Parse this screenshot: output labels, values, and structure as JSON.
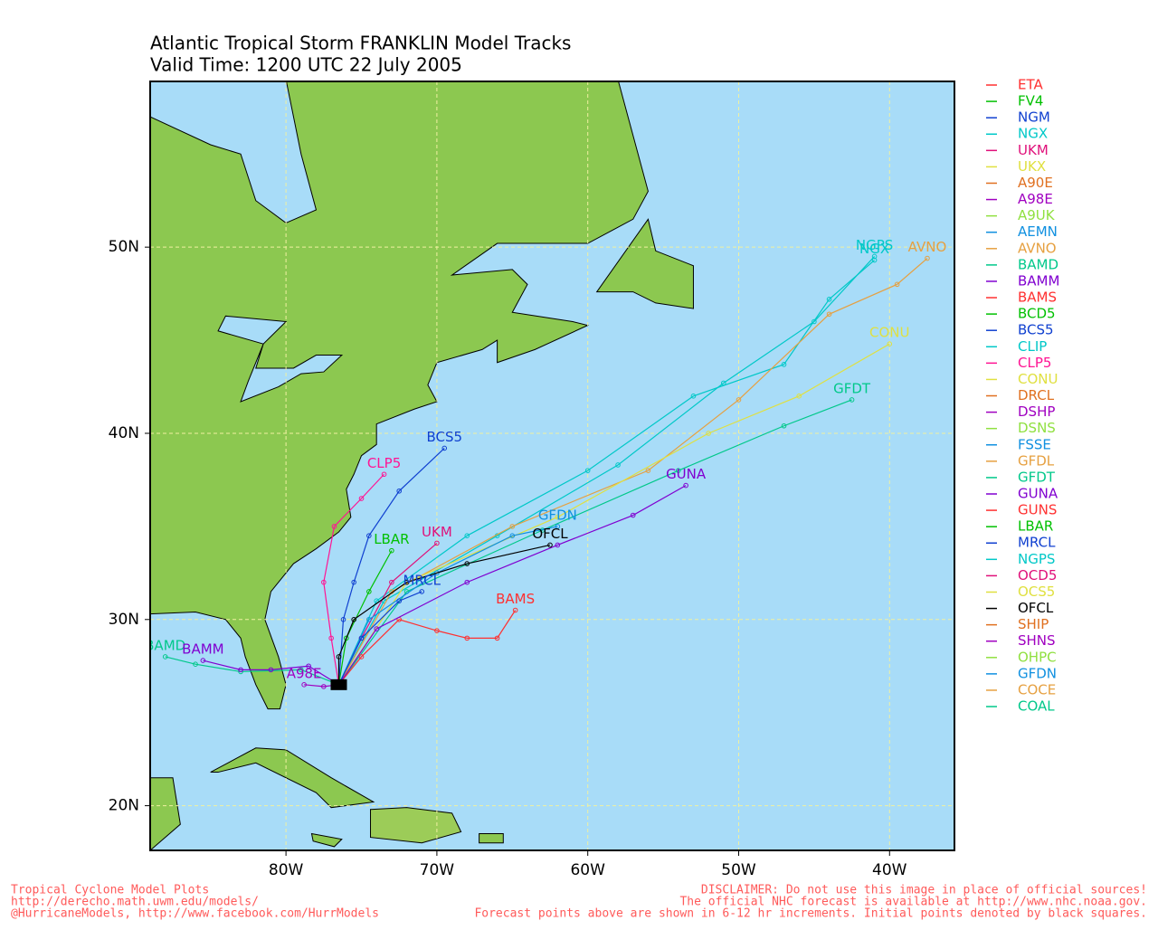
{
  "header": {
    "title": "Atlantic Tropical Storm FRANKLIN Model Tracks",
    "subtitle": "Valid Time: 1200 UTC 22 July 2005"
  },
  "map": {
    "lon_range": [
      -89,
      -35.7
    ],
    "lat_range": [
      17.6,
      58.9
    ],
    "lon_ticks": [
      {
        "value": -80,
        "label": "80W"
      },
      {
        "value": -70,
        "label": "70W"
      },
      {
        "value": -60,
        "label": "60W"
      },
      {
        "value": -50,
        "label": "50W"
      },
      {
        "value": -40,
        "label": "40W"
      }
    ],
    "lat_ticks": [
      {
        "value": 20,
        "label": "20N"
      },
      {
        "value": 30,
        "label": "30N"
      },
      {
        "value": 40,
        "label": "40N"
      },
      {
        "value": 50,
        "label": "50N"
      }
    ],
    "grid": true
  },
  "legend": [
    {
      "name": "ETA",
      "color": "#ff3030"
    },
    {
      "name": "FV4",
      "color": "#00c000"
    },
    {
      "name": "NGM",
      "color": "#1040d0"
    },
    {
      "name": "NGX",
      "color": "#00c8c8"
    },
    {
      "name": "UKM",
      "color": "#e0107a"
    },
    {
      "name": "UKX",
      "color": "#e0e040"
    },
    {
      "name": "A90E",
      "color": "#e07020"
    },
    {
      "name": "A98E",
      "color": "#a000c0"
    },
    {
      "name": "A9UK",
      "color": "#90e040"
    },
    {
      "name": "AEMN",
      "color": "#1090e0"
    },
    {
      "name": "AVNO",
      "color": "#e6a040"
    },
    {
      "name": "BAMD",
      "color": "#00c88a"
    },
    {
      "name": "BAMM",
      "color": "#8000d0"
    },
    {
      "name": "BAMS",
      "color": "#ff3030"
    },
    {
      "name": "BCD5",
      "color": "#00c000"
    },
    {
      "name": "BCS5",
      "color": "#1040d0"
    },
    {
      "name": "CLIP",
      "color": "#00c8c8"
    },
    {
      "name": "CLP5",
      "color": "#ff1493"
    },
    {
      "name": "CONU",
      "color": "#e0e040"
    },
    {
      "name": "DRCL",
      "color": "#e07020"
    },
    {
      "name": "DSHP",
      "color": "#a000c0"
    },
    {
      "name": "DSNS",
      "color": "#90e040"
    },
    {
      "name": "FSSE",
      "color": "#1090e0"
    },
    {
      "name": "GFDL",
      "color": "#e6a040"
    },
    {
      "name": "GFDT",
      "color": "#00c88a"
    },
    {
      "name": "GUNA",
      "color": "#8000d0"
    },
    {
      "name": "GUNS",
      "color": "#ff3030"
    },
    {
      "name": "LBAR",
      "color": "#00c000"
    },
    {
      "name": "MRCL",
      "color": "#1040d0"
    },
    {
      "name": "NGPS",
      "color": "#00c8c8"
    },
    {
      "name": "OCD5",
      "color": "#e0107a"
    },
    {
      "name": "OCS5",
      "color": "#e0e040"
    },
    {
      "name": "OFCL",
      "color": "#000000"
    },
    {
      "name": "SHIP",
      "color": "#e07020"
    },
    {
      "name": "SHNS",
      "color": "#a000c0"
    },
    {
      "name": "OHPC",
      "color": "#90e040"
    },
    {
      "name": "GFDN",
      "color": "#1090e0"
    },
    {
      "name": "COCE",
      "color": "#e6a040"
    },
    {
      "name": "COAL",
      "color": "#00c88a"
    }
  ],
  "tracks": [
    {
      "name": "NGX",
      "color": "#00c8c8",
      "lon": [
        -76.5,
        -74,
        -68,
        -60,
        -53,
        -47,
        -44,
        -41
      ],
      "lat": [
        26.5,
        31,
        34.5,
        38,
        42,
        43.7,
        47.2,
        49.3
      ]
    },
    {
      "name": "NGPS",
      "color": "#00c8c8",
      "lon": [
        -76.5,
        -73.5,
        -66,
        -58,
        -51,
        -45,
        -41
      ],
      "lat": [
        26.5,
        31,
        34.5,
        38.3,
        42.7,
        46,
        49.5
      ]
    },
    {
      "name": "AVNO",
      "color": "#e6a040",
      "lon": [
        -76.5,
        -73,
        -65,
        -56,
        -50,
        -44,
        -39.5,
        -37.5
      ],
      "lat": [
        26.5,
        31.5,
        35,
        38,
        41.8,
        46.4,
        48,
        49.4
      ]
    },
    {
      "name": "CONU",
      "color": "#e0e040",
      "lon": [
        -76.5,
        -72,
        -62,
        -52,
        -46,
        -40
      ],
      "lat": [
        26.5,
        32,
        35.5,
        40,
        42,
        44.8
      ]
    },
    {
      "name": "GFDT",
      "color": "#00c88a",
      "lon": [
        -76.5,
        -72,
        -63,
        -54,
        -47,
        -42.5
      ],
      "lat": [
        26.5,
        31.5,
        34.8,
        38,
        40.4,
        41.8
      ]
    },
    {
      "name": "BCS5",
      "color": "#1040d0",
      "lon": [
        -76.5,
        -76.2,
        -75.5,
        -74.5,
        -72.5,
        -69.5
      ],
      "lat": [
        26.5,
        30,
        32,
        34.5,
        36.9,
        39.2
      ]
    },
    {
      "name": "CLP5",
      "color": "#ff1493",
      "lon": [
        -76.5,
        -77,
        -77.5,
        -76.8,
        -75,
        -73.5
      ],
      "lat": [
        26.5,
        29,
        32,
        35,
        36.5,
        37.8
      ]
    },
    {
      "name": "LBAR",
      "color": "#00c000",
      "lon": [
        -76.5,
        -76,
        -74.5,
        -73
      ],
      "lat": [
        26.5,
        29,
        31.5,
        33.7
      ]
    },
    {
      "name": "UKM",
      "color": "#e0107a",
      "lon": [
        -76.5,
        -75,
        -73,
        -70
      ],
      "lat": [
        26.5,
        29,
        32,
        34.1
      ]
    },
    {
      "name": "BAMS",
      "color": "#ff3030",
      "lon": [
        -76.5,
        -75,
        -72.5,
        -70,
        -68,
        -66,
        -64.8
      ],
      "lat": [
        26.5,
        28,
        30,
        29.4,
        29,
        29,
        30.5
      ]
    },
    {
      "name": "BAMD",
      "color": "#00c88a",
      "lon": [
        -76.5,
        -79,
        -83,
        -86,
        -88
      ],
      "lat": [
        26.5,
        27.3,
        27.2,
        27.6,
        28
      ]
    },
    {
      "name": "BAMM",
      "color": "#8000d0",
      "lon": [
        -76.5,
        -78.5,
        -81,
        -83,
        -85.5
      ],
      "lat": [
        26.5,
        27.5,
        27.3,
        27.3,
        27.8
      ]
    },
    {
      "name": "A98E",
      "color": "#a000c0",
      "lon": [
        -76.5,
        -77.5,
        -78.8
      ],
      "lat": [
        26.5,
        26.4,
        26.5
      ]
    },
    {
      "name": "GUNA",
      "color": "#8000d0",
      "lon": [
        -76.5,
        -74,
        -68,
        -62,
        -57,
        -53.5
      ],
      "lat": [
        26.5,
        29.5,
        32,
        34,
        35.6,
        37.2
      ]
    },
    {
      "name": "GFDN",
      "color": "#1090e0",
      "lon": [
        -76.5,
        -74.5,
        -70,
        -65,
        -62
      ],
      "lat": [
        26.5,
        30,
        32.5,
        34.5,
        35
      ]
    },
    {
      "name": "OFCL",
      "color": "#000000",
      "lon": [
        -76.5,
        -76.5,
        -75.5,
        -72,
        -68,
        -62.5
      ],
      "lat": [
        26.5,
        28,
        30,
        32,
        33,
        34
      ]
    },
    {
      "name": "MRCL",
      "color": "#1040d0",
      "lon": [
        -76.5,
        -75,
        -72.5,
        -71
      ],
      "lat": [
        26.5,
        29,
        31,
        31.5
      ]
    }
  ],
  "footer": {
    "left": [
      "Tropical Cyclone Model Plots",
      "http://derecho.math.uwm.edu/models/",
      "@HurricaneModels, http://www.facebook.com/HurrModels"
    ],
    "right": [
      "DISCLAIMER: Do not use this image in place of official sources!",
      "The official NHC forecast is available at http://www.nhc.noaa.gov.",
      "Forecast points above are shown in 6-12 hr increments. Initial points denoted by black squares."
    ]
  }
}
